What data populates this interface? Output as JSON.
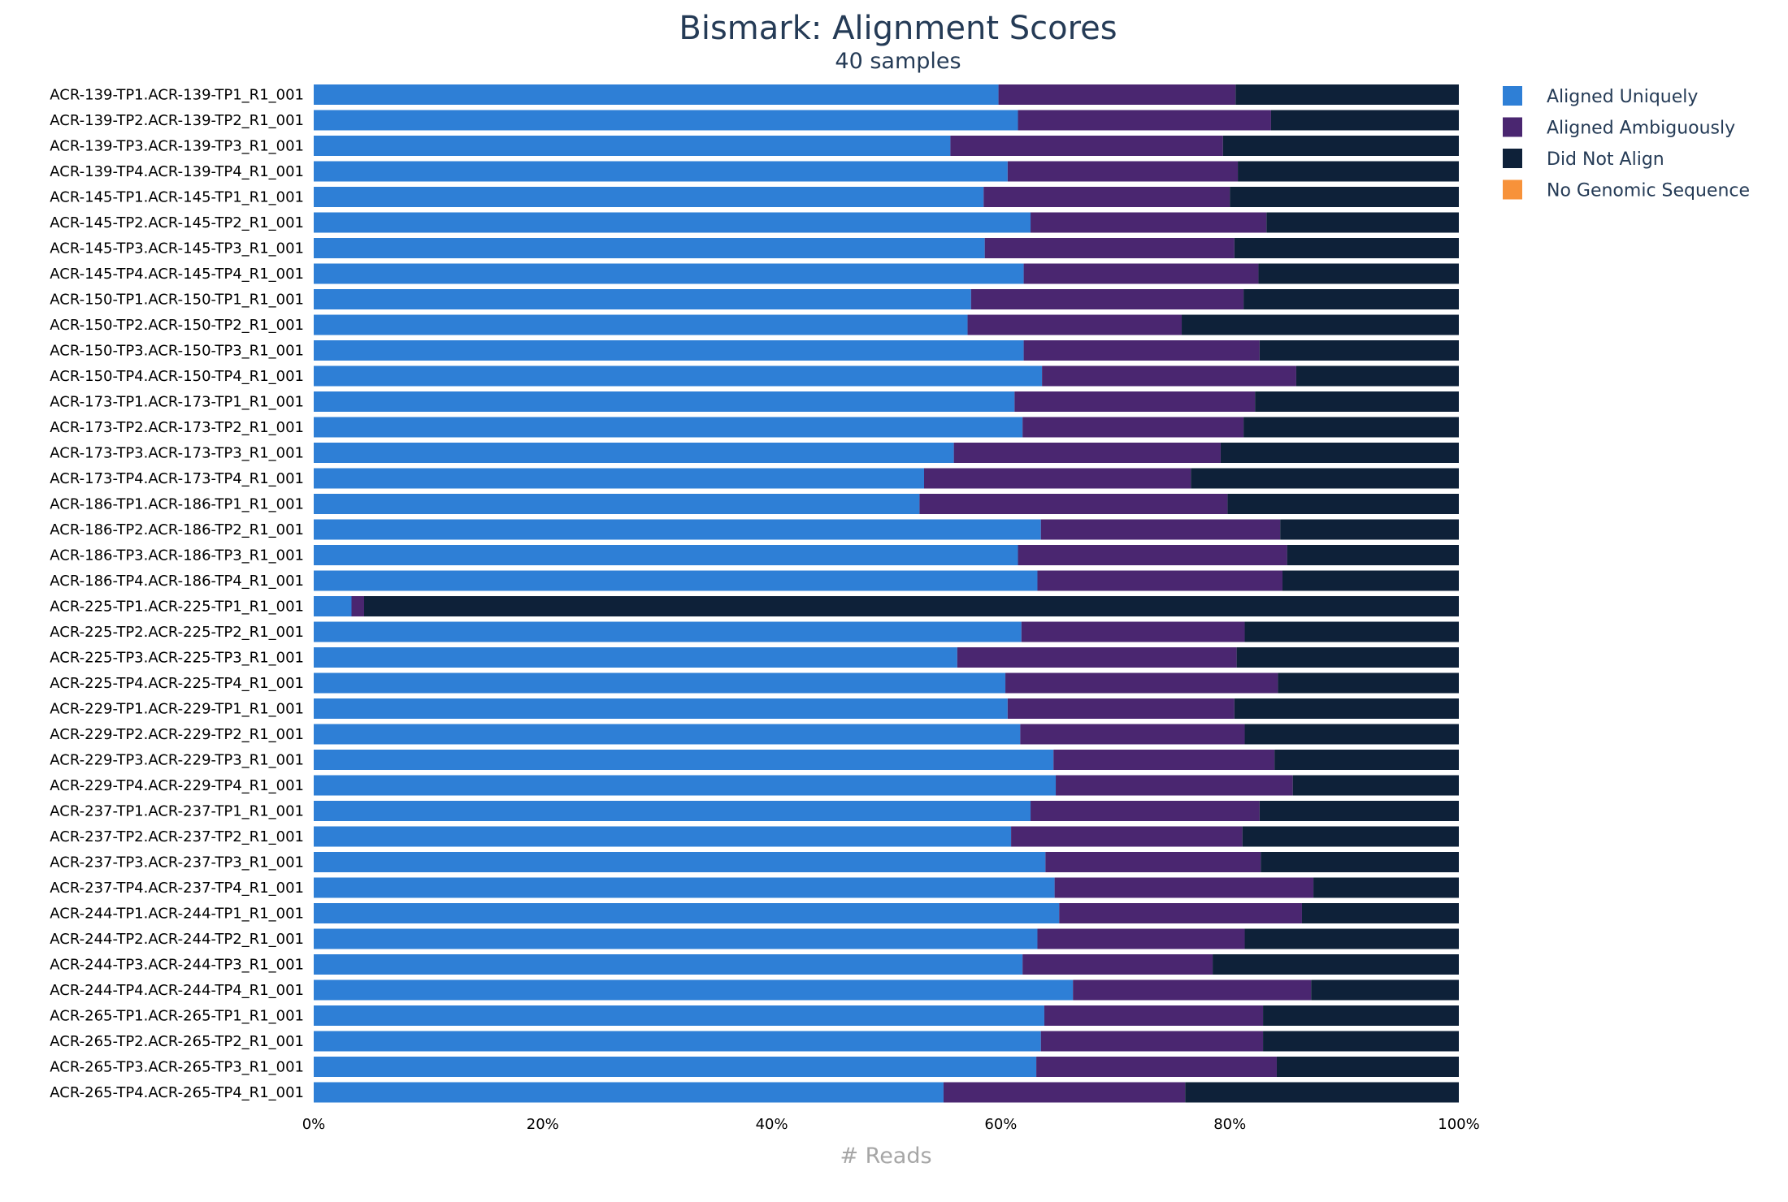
{
  "colors": {
    "aligned_uniquely": "#2e7fd6",
    "aligned_ambiguously": "#4a2670",
    "did_not_align": "#0e2139",
    "no_genomic_sequence": "#f7923a"
  },
  "chart_data": {
    "type": "bar",
    "orientation": "horizontal",
    "stacked": true,
    "normalized": true,
    "title": "Bismark: Alignment Scores",
    "subtitle": "40 samples",
    "xlabel": "# Reads",
    "ylabel": "",
    "xlim": [
      0,
      100
    ],
    "x_ticks": [
      "0%",
      "20%",
      "40%",
      "60%",
      "80%",
      "100%"
    ],
    "legend_position": "top-right",
    "categories": [
      "ACR-139-TP1.ACR-139-TP1_R1_001",
      "ACR-139-TP2.ACR-139-TP2_R1_001",
      "ACR-139-TP3.ACR-139-TP3_R1_001",
      "ACR-139-TP4.ACR-139-TP4_R1_001",
      "ACR-145-TP1.ACR-145-TP1_R1_001",
      "ACR-145-TP2.ACR-145-TP2_R1_001",
      "ACR-145-TP3.ACR-145-TP3_R1_001",
      "ACR-145-TP4.ACR-145-TP4_R1_001",
      "ACR-150-TP1.ACR-150-TP1_R1_001",
      "ACR-150-TP2.ACR-150-TP2_R1_001",
      "ACR-150-TP3.ACR-150-TP3_R1_001",
      "ACR-150-TP4.ACR-150-TP4_R1_001",
      "ACR-173-TP1.ACR-173-TP1_R1_001",
      "ACR-173-TP2.ACR-173-TP2_R1_001",
      "ACR-173-TP3.ACR-173-TP3_R1_001",
      "ACR-173-TP4.ACR-173-TP4_R1_001",
      "ACR-186-TP1.ACR-186-TP1_R1_001",
      "ACR-186-TP2.ACR-186-TP2_R1_001",
      "ACR-186-TP3.ACR-186-TP3_R1_001",
      "ACR-186-TP4.ACR-186-TP4_R1_001",
      "ACR-225-TP1.ACR-225-TP1_R1_001",
      "ACR-225-TP2.ACR-225-TP2_R1_001",
      "ACR-225-TP3.ACR-225-TP3_R1_001",
      "ACR-225-TP4.ACR-225-TP4_R1_001",
      "ACR-229-TP1.ACR-229-TP1_R1_001",
      "ACR-229-TP2.ACR-229-TP2_R1_001",
      "ACR-229-TP3.ACR-229-TP3_R1_001",
      "ACR-229-TP4.ACR-229-TP4_R1_001",
      "ACR-237-TP1.ACR-237-TP1_R1_001",
      "ACR-237-TP2.ACR-237-TP2_R1_001",
      "ACR-237-TP3.ACR-237-TP3_R1_001",
      "ACR-237-TP4.ACR-237-TP4_R1_001",
      "ACR-244-TP1.ACR-244-TP1_R1_001",
      "ACR-244-TP2.ACR-244-TP2_R1_001",
      "ACR-244-TP3.ACR-244-TP3_R1_001",
      "ACR-244-TP4.ACR-244-TP4_R1_001",
      "ACR-265-TP1.ACR-265-TP1_R1_001",
      "ACR-265-TP2.ACR-265-TP2_R1_001",
      "ACR-265-TP3.ACR-265-TP3_R1_001",
      "ACR-265-TP4.ACR-265-TP4_R1_001"
    ],
    "series": [
      {
        "name": "Aligned Uniquely",
        "color": "#2e7fd6",
        "values": [
          59.8,
          61.5,
          55.6,
          60.6,
          58.5,
          62.6,
          58.6,
          62.0,
          57.4,
          57.1,
          62.0,
          63.6,
          61.2,
          61.9,
          55.9,
          53.3,
          52.9,
          63.5,
          61.5,
          63.2,
          3.3,
          61.8,
          56.2,
          60.4,
          60.6,
          61.7,
          64.6,
          64.8,
          62.6,
          60.9,
          63.9,
          64.7,
          65.1,
          63.2,
          61.9,
          66.3,
          63.8,
          63.5,
          63.1,
          55.0
        ]
      },
      {
        "name": "Aligned Ambiguously",
        "color": "#4a2670",
        "values": [
          20.7,
          22.1,
          23.8,
          20.1,
          21.5,
          20.6,
          21.8,
          20.5,
          23.8,
          18.7,
          20.6,
          22.2,
          21.0,
          19.3,
          23.3,
          23.3,
          26.9,
          20.9,
          23.5,
          21.4,
          1.1,
          19.5,
          24.4,
          23.8,
          19.8,
          19.6,
          19.3,
          20.7,
          20.0,
          20.2,
          18.8,
          22.6,
          21.2,
          18.1,
          16.6,
          20.8,
          19.1,
          19.4,
          21.0,
          21.1
        ]
      },
      {
        "name": "Did Not Align",
        "color": "#0e2139",
        "values": [
          19.5,
          16.4,
          20.6,
          19.3,
          20.0,
          16.8,
          19.6,
          17.5,
          18.8,
          24.2,
          17.4,
          14.2,
          17.8,
          18.8,
          20.8,
          23.4,
          20.2,
          15.6,
          15.0,
          15.4,
          95.6,
          18.7,
          19.4,
          15.8,
          19.6,
          18.7,
          16.1,
          14.5,
          17.4,
          18.9,
          17.3,
          12.7,
          13.7,
          18.7,
          21.5,
          12.9,
          17.1,
          17.1,
          15.9,
          23.9
        ]
      },
      {
        "name": "No Genomic Sequence",
        "color": "#f7923a",
        "values": [
          0,
          0,
          0,
          0,
          0,
          0,
          0,
          0,
          0,
          0,
          0,
          0,
          0,
          0,
          0,
          0,
          0,
          0,
          0,
          0,
          0,
          0,
          0,
          0,
          0,
          0,
          0,
          0,
          0,
          0,
          0,
          0,
          0,
          0,
          0,
          0,
          0,
          0,
          0,
          0
        ]
      }
    ]
  }
}
